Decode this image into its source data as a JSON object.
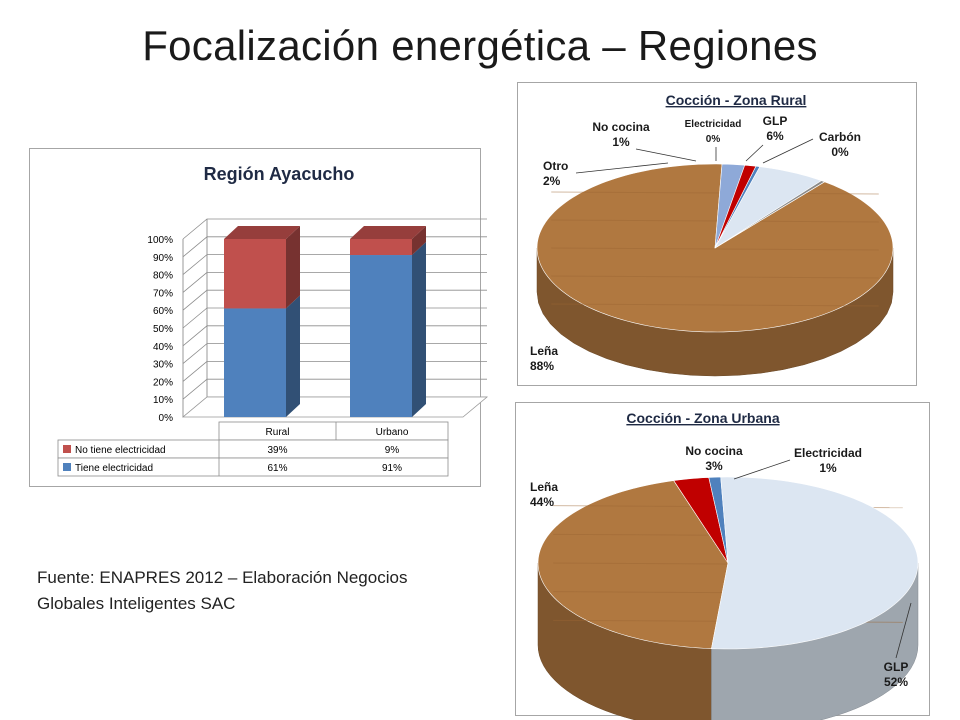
{
  "slide": {
    "title": "Focalización energética – Regiones",
    "source_lines": [
      "Fuente: ENAPRES 2012 – Elaboración Negocios",
      "Globales Inteligentes SAC"
    ]
  },
  "chart_data": [
    {
      "type": "bar",
      "stacked": true,
      "title": "Región  Ayacucho",
      "categories": [
        "Rural",
        "Urbano"
      ],
      "series": [
        {
          "name": "Tiene electricidad",
          "values": [
            61,
            91
          ],
          "labels": [
            "61%",
            "91%"
          ],
          "color": "#4f81bd"
        },
        {
          "name": "No tiene electricidad",
          "values": [
            39,
            9
          ],
          "labels": [
            "39%",
            "9%"
          ],
          "color": "#c0504d"
        }
      ],
      "y_ticks": [
        "0%",
        "10%",
        "20%",
        "30%",
        "40%",
        "50%",
        "60%",
        "70%",
        "80%",
        "90%",
        "100%"
      ],
      "ylim": [
        0,
        100
      ],
      "grid": true,
      "legend": "data-table"
    },
    {
      "type": "pie",
      "title": "Cocción - Zona Rural",
      "slices": [
        {
          "name": "Leña",
          "value": 88,
          "label": "88%",
          "color": "#b07840"
        },
        {
          "name": "GLP",
          "value": 6,
          "label": "6%",
          "color": "#dce6f2"
        },
        {
          "name": "Carbón",
          "value": 0,
          "label": "0%",
          "color": "#8a8a8a"
        },
        {
          "name": "Electricidad",
          "value": 0,
          "label": "0%",
          "color": "#4f81bd"
        },
        {
          "name": "No cocina",
          "value": 1,
          "label": "1%",
          "color": "#c00000"
        },
        {
          "name": "Otro",
          "value": 2,
          "label": "2%",
          "color": "#8ea9d8"
        }
      ]
    },
    {
      "type": "pie",
      "title": "Cocción - Zona Urbana",
      "slices": [
        {
          "name": "GLP",
          "value": 52,
          "label": "52%",
          "color": "#dce6f2"
        },
        {
          "name": "Leña",
          "value": 44,
          "label": "44%",
          "color": "#b07840"
        },
        {
          "name": "No cocina",
          "value": 3,
          "label": "3%",
          "color": "#c00000"
        },
        {
          "name": "Electricidad",
          "value": 1,
          "label": "1%",
          "color": "#4f81bd"
        }
      ]
    }
  ]
}
